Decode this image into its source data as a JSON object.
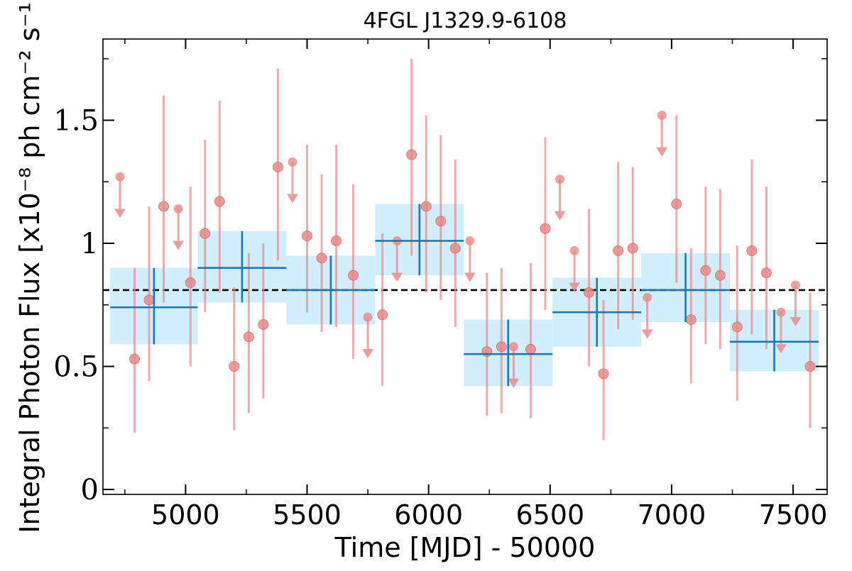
{
  "chart_data": {
    "type": "scatter",
    "title": "4FGL J1329.9-6108",
    "xlabel": "Time [MJD] - 50000",
    "ylabel": "Integral Photon Flux [x10⁻⁸ ph cm⁻² s⁻¹]",
    "xlim": [
      4660,
      7640
    ],
    "ylim": [
      -0.02,
      1.83
    ],
    "xticks": [
      5000,
      5500,
      6000,
      6500,
      7000,
      7500
    ],
    "xtick_labels": [
      "5000",
      "5500",
      "6000",
      "6500",
      "7000",
      "7500"
    ],
    "yticks": [
      0,
      0.5,
      1,
      1.5
    ],
    "ytick_labels": [
      "0",
      "0.5",
      "1",
      "1.5"
    ],
    "grid": false,
    "mean_flux": 0.81,
    "colors": {
      "short_bins": "#e88a8a",
      "long_bins": "#1f77b4",
      "long_band": "#d0eefb",
      "mean_line": "#000000"
    },
    "series": [
      {
        "points": [
          {
            "x": 4730,
            "y": 1.27,
            "ul": true
          },
          {
            "x": 4790,
            "y": 0.53,
            "lo": 0.23,
            "hi": 0.9
          },
          {
            "x": 4850,
            "y": 0.77,
            "lo": 0.44,
            "hi": 1.15
          },
          {
            "x": 4910,
            "y": 1.15,
            "lo": 0.76,
            "hi": 1.6
          },
          {
            "x": 4970,
            "y": 1.14,
            "ul": true
          },
          {
            "x": 5020,
            "y": 0.84,
            "lo": 0.5,
            "hi": 1.23
          },
          {
            "x": 5080,
            "y": 1.04,
            "lo": 0.72,
            "hi": 1.42
          },
          {
            "x": 5140,
            "y": 1.17,
            "lo": 0.8,
            "hi": 1.58
          },
          {
            "x": 5200,
            "y": 0.5,
            "lo": 0.24,
            "hi": 0.82
          },
          {
            "x": 5260,
            "y": 0.62,
            "lo": 0.31,
            "hi": 0.96
          },
          {
            "x": 5320,
            "y": 0.67,
            "lo": 0.37,
            "hi": 1.0
          },
          {
            "x": 5380,
            "y": 1.31,
            "lo": 0.93,
            "hi": 1.71
          },
          {
            "x": 5440,
            "y": 1.33,
            "ul": true
          },
          {
            "x": 5500,
            "y": 1.03,
            "lo": 0.72,
            "hi": 1.4
          },
          {
            "x": 5560,
            "y": 0.94,
            "lo": 0.64,
            "hi": 1.28
          },
          {
            "x": 5620,
            "y": 1.01,
            "lo": 0.66,
            "hi": 1.4
          },
          {
            "x": 5690,
            "y": 0.87,
            "lo": 0.53,
            "hi": 1.24
          },
          {
            "x": 5750,
            "y": 0.7,
            "ul": true
          },
          {
            "x": 5810,
            "y": 0.71,
            "lo": 0.42,
            "hi": 1.04
          },
          {
            "x": 5870,
            "y": 1.01,
            "ul": true
          },
          {
            "x": 5930,
            "y": 1.36,
            "lo": 0.95,
            "hi": 1.75
          },
          {
            "x": 5990,
            "y": 1.15,
            "lo": 0.8,
            "hi": 1.52
          },
          {
            "x": 6050,
            "y": 1.09,
            "lo": 0.77,
            "hi": 1.44
          },
          {
            "x": 6110,
            "y": 0.98,
            "lo": 0.66,
            "hi": 1.34
          },
          {
            "x": 6170,
            "y": 1.01,
            "ul": true
          },
          {
            "x": 6240,
            "y": 0.56,
            "lo": 0.3,
            "hi": 0.88
          },
          {
            "x": 6300,
            "y": 0.58,
            "lo": 0.31,
            "hi": 0.9
          },
          {
            "x": 6350,
            "y": 0.58,
            "ul": true
          },
          {
            "x": 6420,
            "y": 0.57,
            "lo": 0.29,
            "hi": 0.92
          },
          {
            "x": 6480,
            "y": 1.06,
            "lo": 0.73,
            "hi": 1.43
          },
          {
            "x": 6540,
            "y": 1.26,
            "ul": true
          },
          {
            "x": 6600,
            "y": 0.97,
            "ul": true
          },
          {
            "x": 6660,
            "y": 0.8,
            "lo": 0.5,
            "hi": 1.14
          },
          {
            "x": 6720,
            "y": 0.47,
            "lo": 0.2,
            "hi": 0.77
          },
          {
            "x": 6780,
            "y": 0.97,
            "lo": 0.65,
            "hi": 1.33
          },
          {
            "x": 6840,
            "y": 0.98,
            "lo": 0.69,
            "hi": 1.31
          },
          {
            "x": 6900,
            "y": 0.78,
            "ul": true
          },
          {
            "x": 6960,
            "y": 1.52,
            "ul": true
          },
          {
            "x": 7020,
            "y": 1.16,
            "lo": 0.84,
            "hi": 1.52
          },
          {
            "x": 7080,
            "y": 0.69,
            "lo": 0.43,
            "hi": 0.98
          },
          {
            "x": 7140,
            "y": 0.89,
            "lo": 0.59,
            "hi": 1.23
          },
          {
            "x": 7200,
            "y": 0.87,
            "lo": 0.57,
            "hi": 1.22
          },
          {
            "x": 7270,
            "y": 0.66,
            "lo": 0.36,
            "hi": 0.99
          },
          {
            "x": 7330,
            "y": 0.97,
            "lo": 0.63,
            "hi": 1.34
          },
          {
            "x": 7390,
            "y": 0.88,
            "lo": 0.57,
            "hi": 1.23
          },
          {
            "x": 7450,
            "y": 0.72,
            "ul": true
          },
          {
            "x": 7510,
            "y": 0.83,
            "ul": true
          },
          {
            "x": 7570,
            "y": 0.5,
            "lo": 0.25,
            "hi": 0.8
          }
        ]
      },
      {
        "bins": [
          {
            "x0": 4690,
            "x1": 5050,
            "y": 0.74,
            "lo": 0.59,
            "hi": 0.9
          },
          {
            "x0": 5050,
            "x1": 5415,
            "y": 0.9,
            "lo": 0.76,
            "hi": 1.05
          },
          {
            "x0": 5415,
            "x1": 5780,
            "y": 0.81,
            "lo": 0.67,
            "hi": 0.95
          },
          {
            "x0": 5780,
            "x1": 6145,
            "y": 1.01,
            "lo": 0.87,
            "hi": 1.16
          },
          {
            "x0": 6145,
            "x1": 6510,
            "y": 0.55,
            "lo": 0.42,
            "hi": 0.69
          },
          {
            "x0": 6510,
            "x1": 6875,
            "y": 0.72,
            "lo": 0.58,
            "hi": 0.86
          },
          {
            "x0": 6875,
            "x1": 7240,
            "y": 0.81,
            "lo": 0.68,
            "hi": 0.96
          },
          {
            "x0": 7240,
            "x1": 7605,
            "y": 0.6,
            "lo": 0.48,
            "hi": 0.73
          }
        ]
      }
    ]
  }
}
